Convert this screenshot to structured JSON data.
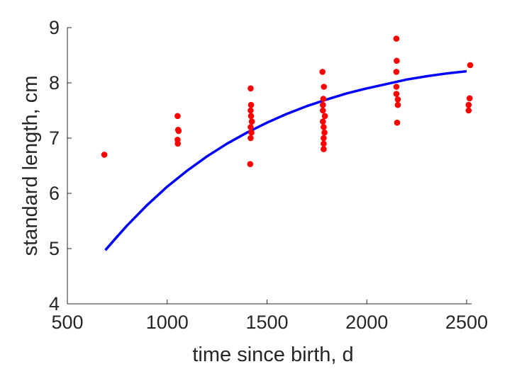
{
  "chart_data": {
    "type": "scatter",
    "xlabel": "time since birth, d",
    "ylabel": "standard length, cm",
    "xlim": [
      500,
      2525
    ],
    "ylim": [
      4,
      9
    ],
    "xticks": [
      500,
      1000,
      1500,
      2000,
      2500
    ],
    "yticks": [
      4,
      5,
      6,
      7,
      8,
      9
    ],
    "x_tick_labels": [
      "500",
      "1000",
      "1500",
      "2000",
      "2500"
    ],
    "y_tick_labels": [
      "4",
      "5",
      "6",
      "7",
      "8",
      "9"
    ],
    "grid": false,
    "box": false,
    "series": [
      {
        "type": "scatter",
        "color": "#ff0000",
        "points": [
          [
            685,
            6.7
          ],
          [
            1052,
            7.4
          ],
          [
            1055,
            7.15
          ],
          [
            1057,
            7.13
          ],
          [
            1052,
            6.97
          ],
          [
            1053,
            6.9
          ],
          [
            1418,
            7.9
          ],
          [
            1420,
            7.6
          ],
          [
            1418,
            7.5
          ],
          [
            1420,
            7.4
          ],
          [
            1424,
            7.3
          ],
          [
            1418,
            7.2
          ],
          [
            1422,
            7.1
          ],
          [
            1418,
            7.0
          ],
          [
            1416,
            6.53
          ],
          [
            1778,
            8.2
          ],
          [
            1782,
            7.71
          ],
          [
            1785,
            7.93
          ],
          [
            1780,
            7.6
          ],
          [
            1780,
            7.5
          ],
          [
            1790,
            7.4
          ],
          [
            1780,
            7.3
          ],
          [
            1784,
            7.2
          ],
          [
            1788,
            7.1
          ],
          [
            1784,
            7.0
          ],
          [
            1784,
            6.9
          ],
          [
            1784,
            6.8
          ],
          [
            2148,
            8.8
          ],
          [
            2150,
            8.4
          ],
          [
            2148,
            8.2
          ],
          [
            2148,
            7.93
          ],
          [
            2148,
            7.8
          ],
          [
            2155,
            7.7
          ],
          [
            2155,
            7.6
          ],
          [
            2152,
            7.28
          ],
          [
            2518,
            8.32
          ],
          [
            2515,
            7.72
          ],
          [
            2510,
            7.6
          ],
          [
            2510,
            7.5
          ]
        ]
      },
      {
        "type": "line",
        "color": "#0000ff",
        "points": [
          [
            690,
            4.97
          ],
          [
            750,
            5.22
          ],
          [
            800,
            5.42
          ],
          [
            900,
            5.79
          ],
          [
            1000,
            6.12
          ],
          [
            1100,
            6.41
          ],
          [
            1200,
            6.67
          ],
          [
            1300,
            6.9
          ],
          [
            1400,
            7.1
          ],
          [
            1500,
            7.28
          ],
          [
            1600,
            7.44
          ],
          [
            1700,
            7.58
          ],
          [
            1800,
            7.7
          ],
          [
            1900,
            7.81
          ],
          [
            2000,
            7.9
          ],
          [
            2100,
            7.98
          ],
          [
            2200,
            8.06
          ],
          [
            2300,
            8.12
          ],
          [
            2400,
            8.17
          ],
          [
            2500,
            8.21
          ]
        ]
      }
    ]
  }
}
